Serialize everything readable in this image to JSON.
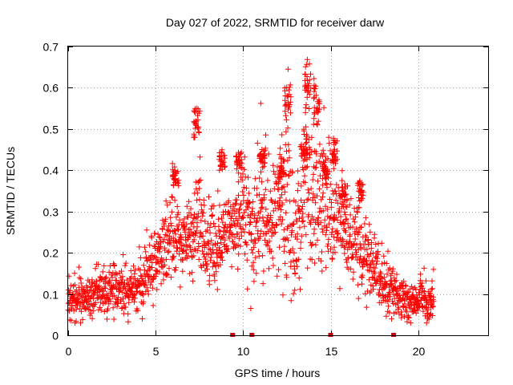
{
  "chart_data": {
    "type": "scatter",
    "title": "Day 027 of 2022, SRMTID for receiver darw",
    "xlabel": "GPS time / hours",
    "ylabel": "SRMTID / TECUs",
    "xlim": [
      0,
      24
    ],
    "ylim": [
      0,
      0.7
    ],
    "xticks": [
      0,
      5,
      10,
      15,
      20
    ],
    "yticks": [
      0,
      0.1,
      0.2,
      0.3,
      0.4,
      0.5,
      0.6,
      0.7
    ],
    "xtick_labels": [
      "0",
      "5",
      "10",
      "15",
      "20"
    ],
    "ytick_labels": [
      "0",
      "0.1",
      "0.2",
      "0.3",
      "0.4",
      "0.5",
      "0.6",
      "0.7"
    ],
    "grid": true,
    "marker": "+",
    "color": "#ff0000",
    "baseline_markers_x": [
      9.4,
      10.5,
      15.0,
      18.6
    ],
    "series": [
      {
        "name": "SRMTID",
        "profile": [
          [
            0.0,
            0.08,
            0.025
          ],
          [
            1.0,
            0.09,
            0.025
          ],
          [
            2.0,
            0.11,
            0.028
          ],
          [
            3.0,
            0.11,
            0.03
          ],
          [
            4.0,
            0.12,
            0.03
          ],
          [
            4.5,
            0.15,
            0.035
          ],
          [
            5.0,
            0.18,
            0.04
          ],
          [
            5.5,
            0.21,
            0.045
          ],
          [
            6.0,
            0.24,
            0.05
          ],
          [
            6.5,
            0.22,
            0.045
          ],
          [
            7.0,
            0.24,
            0.05
          ],
          [
            7.5,
            0.28,
            0.07
          ],
          [
            8.0,
            0.22,
            0.05
          ],
          [
            8.5,
            0.2,
            0.05
          ],
          [
            9.0,
            0.24,
            0.05
          ],
          [
            9.5,
            0.27,
            0.05
          ],
          [
            10.0,
            0.3,
            0.06
          ],
          [
            10.5,
            0.25,
            0.06
          ],
          [
            11.0,
            0.3,
            0.07
          ],
          [
            11.5,
            0.27,
            0.06
          ],
          [
            12.0,
            0.31,
            0.07
          ],
          [
            12.5,
            0.34,
            0.1
          ],
          [
            13.0,
            0.22,
            0.08
          ],
          [
            13.5,
            0.38,
            0.1
          ],
          [
            14.0,
            0.33,
            0.09
          ],
          [
            14.5,
            0.36,
            0.1
          ],
          [
            15.0,
            0.28,
            0.07
          ],
          [
            15.5,
            0.28,
            0.06
          ],
          [
            16.0,
            0.24,
            0.05
          ],
          [
            16.5,
            0.22,
            0.05
          ],
          [
            17.0,
            0.19,
            0.05
          ],
          [
            17.5,
            0.16,
            0.04
          ],
          [
            18.0,
            0.13,
            0.035
          ],
          [
            18.5,
            0.12,
            0.03
          ],
          [
            19.0,
            0.1,
            0.03
          ],
          [
            19.5,
            0.08,
            0.025
          ],
          [
            20.0,
            0.08,
            0.025
          ],
          [
            20.5,
            0.08,
            0.025
          ],
          [
            20.9,
            0.1,
            0.025
          ]
        ],
        "clusters": [
          [
            7.35,
            0.51,
            0.05
          ],
          [
            13.7,
            0.6,
            0.05
          ],
          [
            14.2,
            0.56,
            0.05
          ],
          [
            12.55,
            0.57,
            0.05
          ],
          [
            8.8,
            0.42,
            0.03
          ],
          [
            9.75,
            0.42,
            0.03
          ],
          [
            11.1,
            0.43,
            0.02
          ],
          [
            13.5,
            0.45,
            0.04
          ],
          [
            15.25,
            0.44,
            0.04
          ],
          [
            6.15,
            0.38,
            0.02
          ],
          [
            15.8,
            0.33,
            0.03
          ],
          [
            16.7,
            0.35,
            0.02
          ],
          [
            12.2,
            0.4,
            0.03
          ],
          [
            14.7,
            0.4,
            0.03
          ]
        ]
      }
    ]
  }
}
